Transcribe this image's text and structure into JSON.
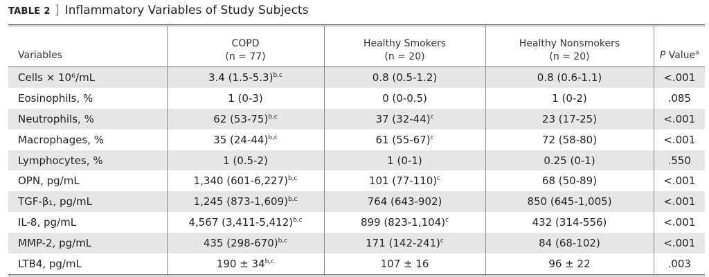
{
  "caption": {
    "label": "TABLE 2",
    "bracket": "]",
    "title": "Inflammatory Variables of Study Subjects"
  },
  "header": {
    "variables": "Variables",
    "groups": [
      {
        "name": "COPD",
        "n": "(n = 77)"
      },
      {
        "name": "Healthy Smokers",
        "n": "(n = 20)"
      },
      {
        "name": "Healthy Nonsmokers",
        "n": "(n = 20)"
      }
    ],
    "p_value": {
      "italic": "P",
      "rest": " Value",
      "sup": "a"
    }
  },
  "rows": [
    {
      "variable": "Cells × 10⁶/mL",
      "copd": "3.4 (1.5-5.3)",
      "copd_sup": "b,c",
      "smokers": "0.8 (0.5-1.2)",
      "smokers_sup": "",
      "nonsmokers": "0.8 (0.6-1.1)",
      "p": "<.001"
    },
    {
      "variable": "Eosinophils, %",
      "copd": "1 (0-3)",
      "copd_sup": "",
      "smokers": "0 (0-0.5)",
      "smokers_sup": "",
      "nonsmokers": "1 (0-2)",
      "p": ".085"
    },
    {
      "variable": "Neutrophils, %",
      "copd": "62 (53-75)",
      "copd_sup": "b,c",
      "smokers": "37 (32-44)",
      "smokers_sup": "c",
      "nonsmokers": "23 (17-25)",
      "p": "<.001"
    },
    {
      "variable": "Macrophages, %",
      "copd": "35 (24-44)",
      "copd_sup": "b,c",
      "smokers": "61 (55-67)",
      "smokers_sup": "c",
      "nonsmokers": "72 (58-80)",
      "p": "<.001"
    },
    {
      "variable": "Lymphocytes, %",
      "copd": "1 (0.5-2)",
      "copd_sup": "",
      "smokers": "1 (0-1)",
      "smokers_sup": "",
      "nonsmokers": "0.25 (0-1)",
      "p": ".550"
    },
    {
      "variable": "OPN, pg/mL",
      "copd": "1,340 (601-6,227)",
      "copd_sup": "b,c",
      "smokers": "101 (77-110)",
      "smokers_sup": "c",
      "nonsmokers": "68 (50-89)",
      "p": "<.001"
    },
    {
      "variable": "TGF-β₁, pg/mL",
      "copd": "1,245 (873-1,609)",
      "copd_sup": "b,c",
      "smokers": "764 (643-902)",
      "smokers_sup": "",
      "nonsmokers": "850 (645-1,005)",
      "p": "<.001"
    },
    {
      "variable": "IL-8, pg/mL",
      "copd": "4,567 (3,411-5,412)",
      "copd_sup": "b,c",
      "smokers": "899 (823-1,104)",
      "smokers_sup": "c",
      "nonsmokers": "432 (314-556)",
      "p": "<.001"
    },
    {
      "variable": "MMP-2, pg/mL",
      "copd": "435 (298-670)",
      "copd_sup": "b,c",
      "smokers": "171 (142-241)",
      "smokers_sup": "c",
      "nonsmokers": "84 (68-102)",
      "p": "<.001"
    },
    {
      "variable": "LTB4, pg/mL",
      "copd": "190 ± 34",
      "copd_sup": "b,c",
      "smokers": "107 ± 16",
      "smokers_sup": "",
      "nonsmokers": "96 ± 22",
      "p": ".003"
    }
  ]
}
